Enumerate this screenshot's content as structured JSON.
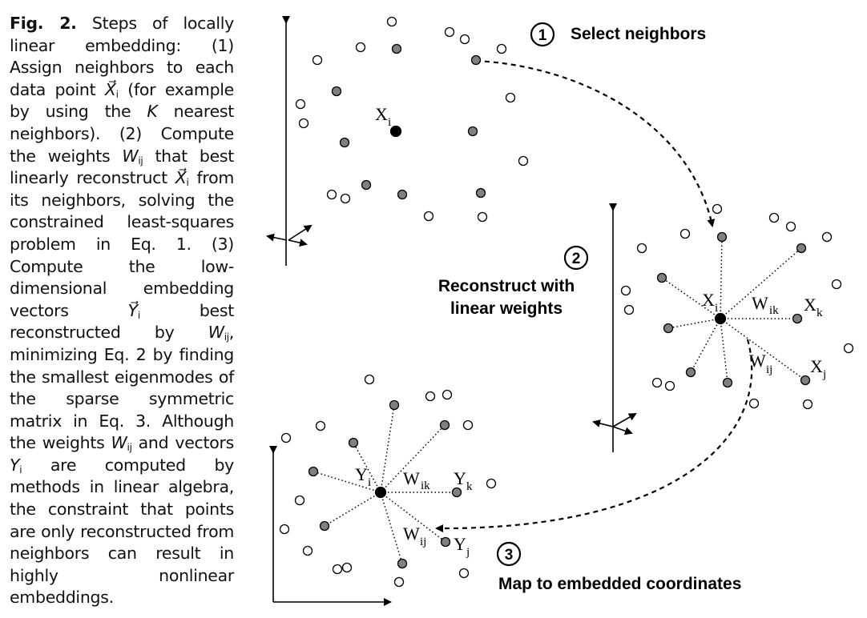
{
  "caption": {
    "fig_label": "Fig. 2.",
    "p1": " Steps of locally linear embedding: (1) Assign neighbors to each data point ",
    "x_vec": "X⃗",
    "i": "i",
    "p2": " (for example by using the ",
    "k": "K",
    "p3": " nearest neighbors). (2) Compute the weights ",
    "w": "W",
    "ij": "ij",
    "p4": " that best linearly reconstruct ",
    "p5": " from its neighbors, solving the constrained least-squares problem in Eq. 1. (3) Compute the low-dimensional embedding vectors ",
    "y_vec": "Y⃗",
    "p6": " best reconstructed by ",
    "p7": ", minimizing Eq. 2 by finding the smallest eigenmodes of the sparse symmetric matrix in Eq. 3. Although the weights ",
    "p8": " and vectors ",
    "y": "Y",
    "p9": " are computed by methods in linear algebra, the constraint that points are only reconstructed from neighbors can result in highly nonlinear embeddings."
  },
  "steps": [
    {
      "number": "1",
      "label": "Select neighbors"
    },
    {
      "number": "2",
      "label_line1": "Reconstruct with",
      "label_line2": "linear weights"
    },
    {
      "number": "3",
      "label": "Map to embedded coordinates"
    }
  ],
  "math_labels": {
    "X": "X",
    "Y": "Y",
    "W": "W",
    "i": "i",
    "j": "j",
    "k": "k",
    "ik": "ik",
    "ij": "ij"
  },
  "colors": {
    "neighbor_fill": "#808080",
    "point_fill": "#ffffff",
    "center_fill": "#000000",
    "stroke": "#000000"
  }
}
